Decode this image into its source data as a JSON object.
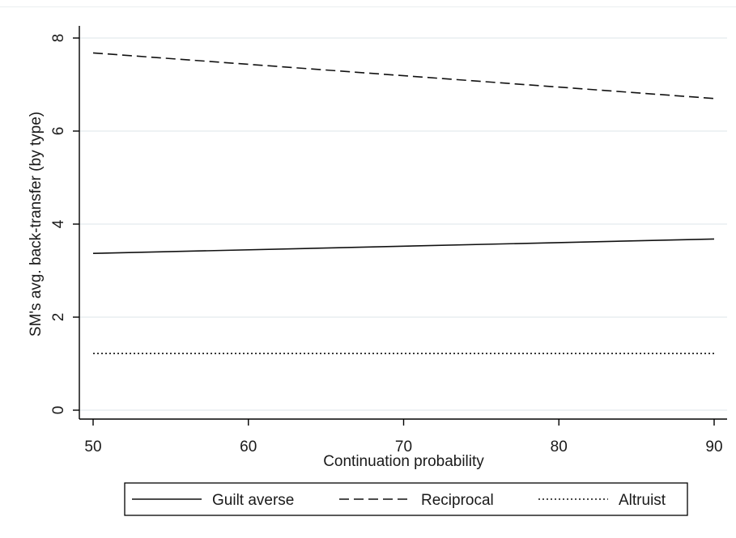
{
  "chart_data": {
    "type": "line",
    "title": "",
    "xlabel": "Continuation probability",
    "ylabel": "SM's avg. back-transfer (by type)",
    "xlim": [
      50,
      90
    ],
    "ylim": [
      0,
      8
    ],
    "xticks": [
      50,
      60,
      70,
      80,
      90
    ],
    "yticks": [
      0,
      2,
      4,
      6,
      8
    ],
    "grid": true,
    "legend_position": "bottom",
    "series": [
      {
        "name": "Guilt averse",
        "style": "solid",
        "x": [
          50,
          90
        ],
        "y": [
          3.37,
          3.68
        ]
      },
      {
        "name": "Reciprocal",
        "style": "dashed",
        "x": [
          50,
          90
        ],
        "y": [
          7.68,
          6.7
        ]
      },
      {
        "name": "Altruist",
        "style": "dotted",
        "x": [
          50,
          90
        ],
        "y": [
          1.22,
          1.22
        ]
      }
    ],
    "colors": {
      "line": "#111111",
      "grid": "#e3e9ed",
      "axis": "#000000"
    }
  }
}
